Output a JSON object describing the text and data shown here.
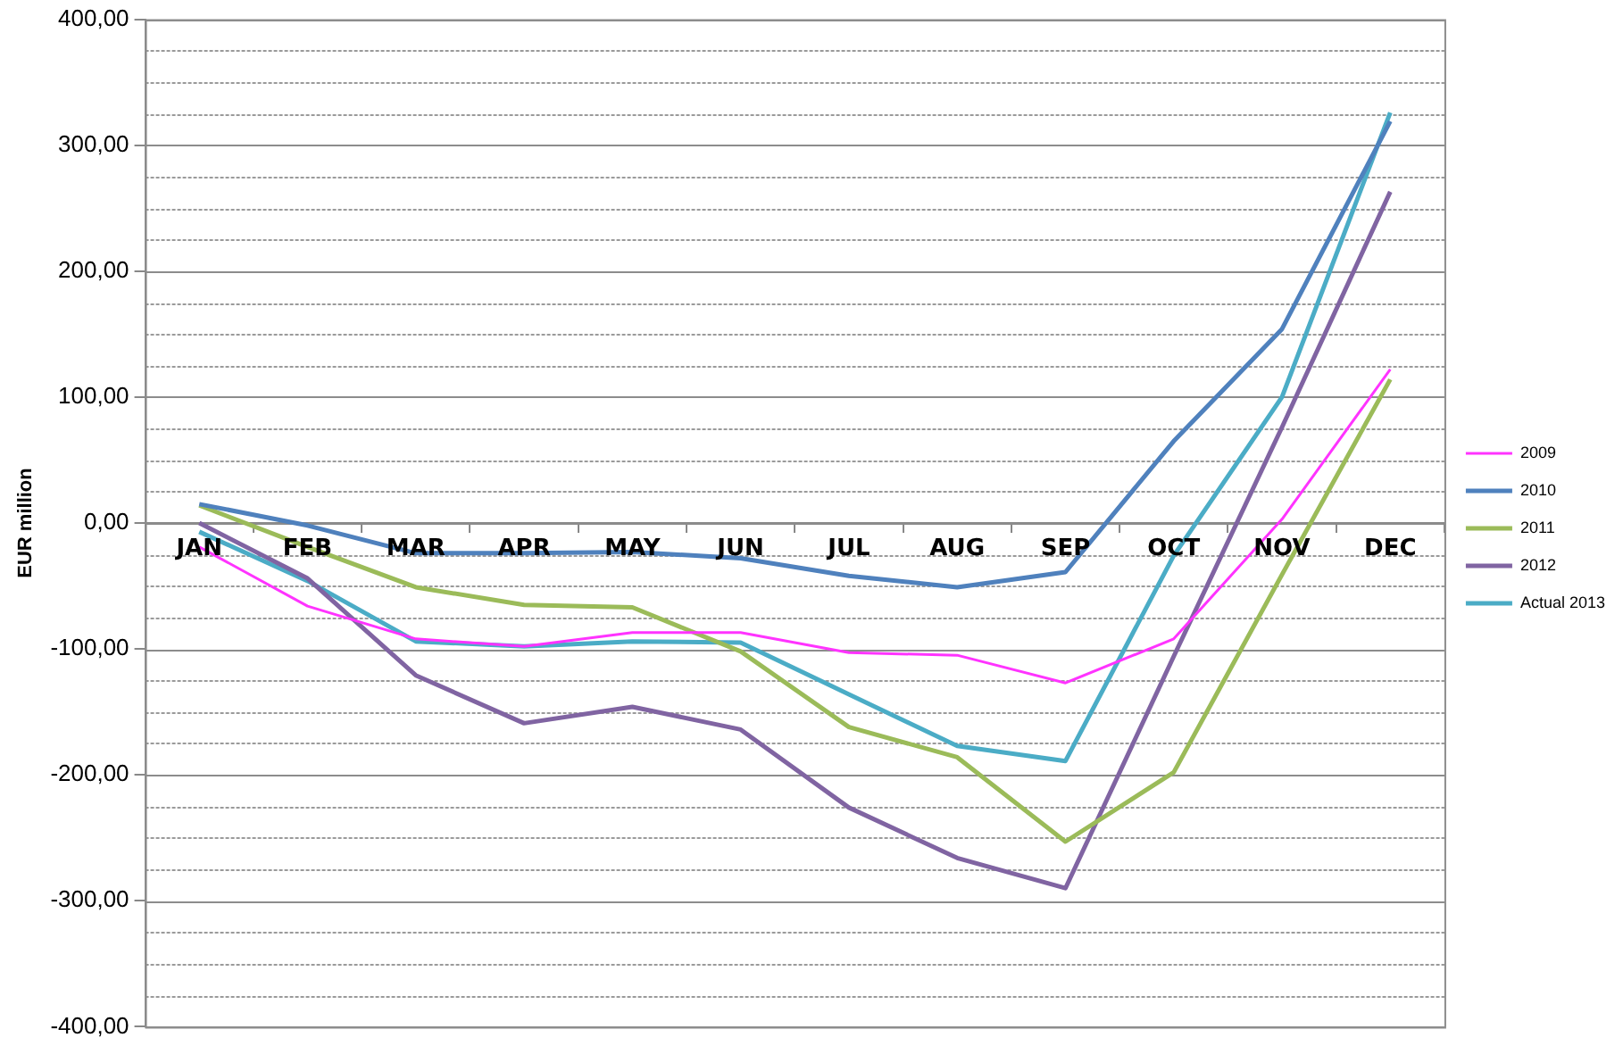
{
  "chart_data": {
    "type": "line",
    "ylabel": "EUR million",
    "categories": [
      "JAN",
      "FEB",
      "MAR",
      "APR",
      "MAY",
      "JUN",
      "JUL",
      "AUG",
      "SEP",
      "OCT",
      "NOV",
      "DEC"
    ],
    "series": [
      {
        "name": "2009",
        "color": "#ff33ff",
        "values": [
          -19,
          -66,
          -92,
          -98,
          -87,
          -87,
          -103,
          -105,
          -127,
          -92,
          3,
          122
        ]
      },
      {
        "name": "2010",
        "color": "#4f81bd",
        "values": [
          15,
          -2,
          -24,
          -24,
          -23,
          -28,
          -42,
          -51,
          -39,
          65,
          154,
          319
        ]
      },
      {
        "name": "2011",
        "color": "#9bbb59",
        "values": [
          14,
          -19,
          -51,
          -65,
          -67,
          -102,
          -162,
          -186,
          -253,
          -198,
          -41,
          114
        ]
      },
      {
        "name": "2012",
        "color": "#8064a2",
        "values": [
          0,
          -44,
          -121,
          -159,
          -146,
          -164,
          -226,
          -266,
          -290,
          -106,
          76,
          263
        ]
      },
      {
        "name": "Actual 2013",
        "color": "#4bacc6",
        "values": [
          -7,
          -46,
          -94,
          -98,
          -94,
          -95,
          -136,
          -177,
          -189,
          -26,
          100,
          326
        ]
      }
    ],
    "ylim": [
      -400,
      400
    ],
    "yticks": [
      {
        "value": -400,
        "label": "-400,00"
      },
      {
        "value": -375,
        "label": null
      },
      {
        "value": -350,
        "label": null
      },
      {
        "value": -325,
        "label": null
      },
      {
        "value": -300,
        "label": "-300,00"
      },
      {
        "value": -275,
        "label": null
      },
      {
        "value": -250,
        "label": null
      },
      {
        "value": -225,
        "label": null
      },
      {
        "value": -200,
        "label": "-200,00"
      },
      {
        "value": -175,
        "label": null
      },
      {
        "value": -150,
        "label": null
      },
      {
        "value": -125,
        "label": null
      },
      {
        "value": -100,
        "label": "-100,00"
      },
      {
        "value": -75,
        "label": null
      },
      {
        "value": -50,
        "label": null
      },
      {
        "value": -25,
        "label": null
      },
      {
        "value": 0,
        "label": "0,00"
      },
      {
        "value": 25,
        "label": null
      },
      {
        "value": 50,
        "label": null
      },
      {
        "value": 75,
        "label": null
      },
      {
        "value": 100,
        "label": "100,00"
      },
      {
        "value": 125,
        "label": null
      },
      {
        "value": 150,
        "label": null
      },
      {
        "value": 175,
        "label": null
      },
      {
        "value": 200,
        "label": "200,00"
      },
      {
        "value": 225,
        "label": null
      },
      {
        "value": 250,
        "label": null
      },
      {
        "value": 275,
        "label": null
      },
      {
        "value": 300,
        "label": "300,00"
      },
      {
        "value": 325,
        "label": null
      },
      {
        "value": 350,
        "label": null
      },
      {
        "value": 375,
        "label": null
      },
      {
        "value": 400,
        "label": "400,00"
      }
    ],
    "grid": true,
    "legend": "right",
    "marker": "none",
    "line_style": "solid"
  }
}
